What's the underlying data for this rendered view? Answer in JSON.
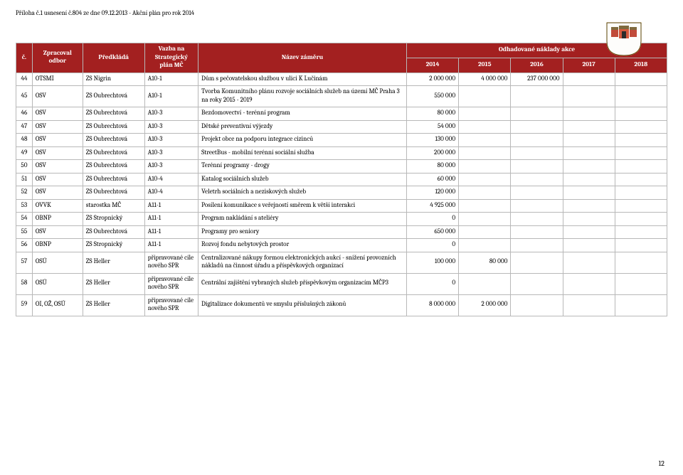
{
  "docHeader": "Příloha č.1 usnesení č.804 ze dne 09.12.2013 - Akční plán pro rok 2014",
  "pageNumber": "12",
  "table": {
    "headers": {
      "num": "č.",
      "dept": "Zpracoval odbor",
      "presenter": "Předkládá",
      "plan": "Vazba na Strategický plán MČ",
      "name": "Název záměru",
      "costsTitle": "Odhadované náklady akce",
      "y2014": "2014",
      "y2015": "2015",
      "y2016": "2016",
      "y2017": "2017",
      "y2018": "2018"
    },
    "rows": [
      {
        "n": "44",
        "dept": "OTSMI",
        "pres": "ZS Nigrin",
        "plan": "A10-1",
        "name": "Dům s pečovatelskou službou v ulici K Lučinám",
        "c": [
          "2 000 000",
          "4 000 000",
          "237 000 000",
          "",
          ""
        ]
      },
      {
        "n": "45",
        "dept": "OSV",
        "pres": "ZS Oubrechtová",
        "plan": "A10-1",
        "name": "Tvorba Komunitního plánu rozvoje sociálních služeb na území MČ Praha 3 na roky 2015 - 2019",
        "c": [
          "550 000",
          "",
          "",
          "",
          ""
        ]
      },
      {
        "n": "46",
        "dept": "OSV",
        "pres": "ZS Oubrechtová",
        "plan": "A10-3",
        "name": "Bezdomovectví - terénní program",
        "c": [
          "80 000",
          "",
          "",
          "",
          ""
        ]
      },
      {
        "n": "47",
        "dept": "OSV",
        "pres": "ZS Oubrechtová",
        "plan": "A10-3",
        "name": "Dětské preventivní výjezdy",
        "c": [
          "54 000",
          "",
          "",
          "",
          ""
        ]
      },
      {
        "n": "48",
        "dept": "OSV",
        "pres": "ZS Oubrechtová",
        "plan": "A10-3",
        "name": "Projekt obce na podporu integrace cizinců",
        "c": [
          "130 000",
          "",
          "",
          "",
          ""
        ]
      },
      {
        "n": "49",
        "dept": "OSV",
        "pres": "ZS Oubrechtová",
        "plan": "A10-3",
        "name": "StreetBus - mobilní terénní sociální služba",
        "c": [
          "200 000",
          "",
          "",
          "",
          ""
        ]
      },
      {
        "n": "50",
        "dept": "OSV",
        "pres": "ZS Oubrechtová",
        "plan": "A10-3",
        "name": "Terénní programy - drogy",
        "c": [
          "80 000",
          "",
          "",
          "",
          ""
        ]
      },
      {
        "n": "51",
        "dept": "OSV",
        "pres": "ZS Oubrechtová",
        "plan": "A10-4",
        "name": "Katalog sociálních služeb",
        "c": [
          "60 000",
          "",
          "",
          "",
          ""
        ]
      },
      {
        "n": "52",
        "dept": "OSV",
        "pres": "ZS Oubrechtová",
        "plan": "A10-4",
        "name": "Veletrh sociálních a neziskových služeb",
        "c": [
          "120 000",
          "",
          "",
          "",
          ""
        ]
      },
      {
        "n": "53",
        "dept": "OVVK",
        "pres": "starostka MČ",
        "plan": "A11-1",
        "name": "Posílení komunikace s veřejností směrem k větší interakci",
        "c": [
          "4 925 000",
          "",
          "",
          "",
          ""
        ]
      },
      {
        "n": "54",
        "dept": "OBNP",
        "pres": "ZS Stropnický",
        "plan": "A11-1",
        "name": "Program nakládání s ateliéry",
        "c": [
          "0",
          "",
          "",
          "",
          ""
        ]
      },
      {
        "n": "55",
        "dept": "OSV",
        "pres": "ZS Oubrechtová",
        "plan": "A11-1",
        "name": "Programy pro seniory",
        "c": [
          "650 000",
          "",
          "",
          "",
          ""
        ]
      },
      {
        "n": "56",
        "dept": "OBNP",
        "pres": "ZS Stropnický",
        "plan": "A11-1",
        "name": "Rozvoj fondu nebytových prostor",
        "c": [
          "0",
          "",
          "",
          "",
          ""
        ]
      },
      {
        "n": "57",
        "dept": "OSÚ",
        "pres": "ZS Heller",
        "plan": "připravované cíle nového SPR",
        "name": "Centralizované nákupy formou elektronických aukcí - snížení provozních nákladů na činnost úřadu a příspěvkových organizací",
        "c": [
          "100 000",
          "80 000",
          "",
          "",
          ""
        ]
      },
      {
        "n": "58",
        "dept": "OSÚ",
        "pres": "ZS Heller",
        "plan": "připravované cíle nového SPR",
        "name": "Centrální zajištění vybraných služeb příspěvkovým organizacím MČP3",
        "c": [
          "0",
          "",
          "",
          "",
          ""
        ]
      },
      {
        "n": "59",
        "dept": "OI, OŽ, OSÚ",
        "pres": "ZS Heller",
        "plan": "připravované cíle nového SPR",
        "name": "Digitalizace dokumentů ve smyslu příslušných zákonů",
        "c": [
          "8 000 000",
          "2 000 000",
          "",
          "",
          ""
        ]
      }
    ]
  }
}
